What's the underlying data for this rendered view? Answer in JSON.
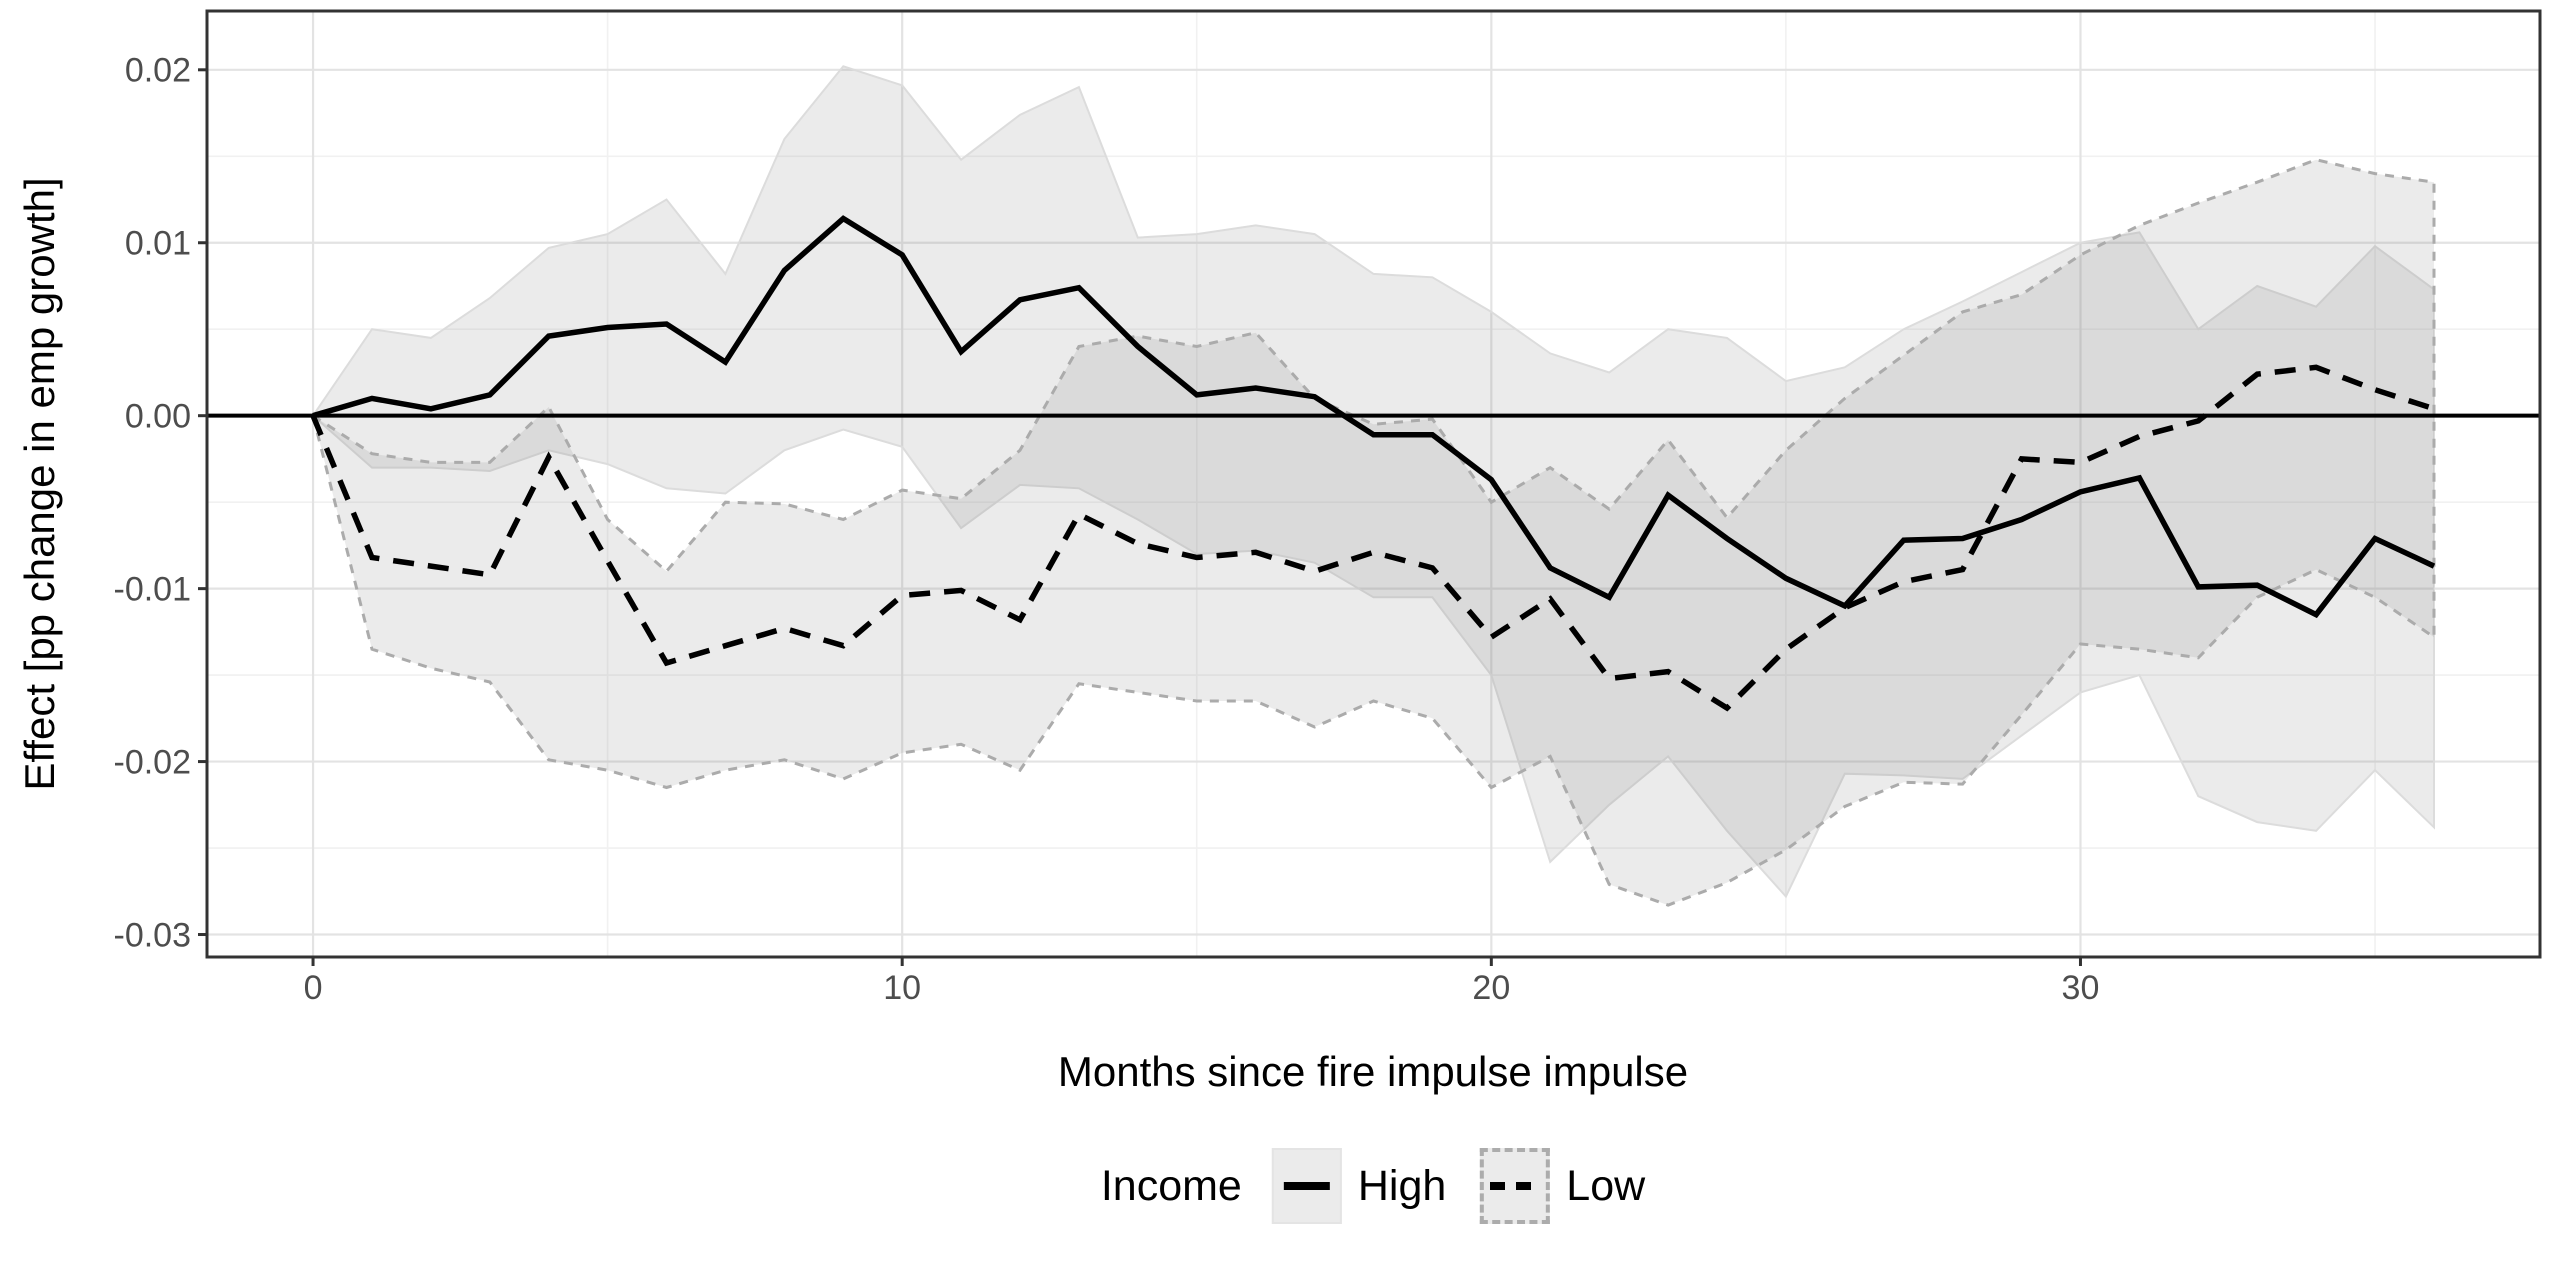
{
  "chart_data": {
    "type": "line",
    "title": "",
    "xlabel": "Months since fire impulse impulse",
    "ylabel": "Effect [pp change in emp growth]",
    "x": [
      0,
      1,
      2,
      3,
      4,
      5,
      6,
      7,
      8,
      9,
      10,
      11,
      12,
      13,
      14,
      15,
      16,
      17,
      18,
      19,
      20,
      21,
      22,
      23,
      24,
      25,
      26,
      27,
      28,
      29,
      30,
      31,
      32,
      33,
      34,
      35,
      36
    ],
    "series": [
      {
        "name": "High",
        "linetype": "solid",
        "values": [
          0.0,
          0.001,
          0.0004,
          0.0012,
          0.0046,
          0.0051,
          0.0053,
          0.0031,
          0.0084,
          0.0114,
          0.0093,
          0.0037,
          0.0067,
          0.0074,
          0.004,
          0.0012,
          0.0016,
          0.0011,
          -0.0011,
          -0.0011,
          -0.0037,
          -0.0088,
          -0.0105,
          -0.0046,
          -0.0071,
          -0.0094,
          -0.011,
          -0.0072,
          -0.0071,
          -0.006,
          -0.0044,
          -0.0036,
          -0.0099,
          -0.0098,
          -0.0115,
          -0.0071,
          -0.0087
        ],
        "upper": [
          0.0,
          0.005,
          0.0045,
          0.0068,
          0.0097,
          0.0105,
          0.0125,
          0.0082,
          0.016,
          0.0202,
          0.0191,
          0.0148,
          0.0174,
          0.019,
          0.0103,
          0.0105,
          0.011,
          0.0105,
          0.0082,
          0.008,
          0.006,
          0.0036,
          0.0025,
          0.005,
          0.0045,
          0.002,
          0.0028,
          0.005,
          0.0066,
          0.0083,
          0.01,
          0.0106,
          0.005,
          0.0075,
          0.0063,
          0.0098,
          0.0073
        ],
        "lower": [
          0.0,
          -0.003,
          -0.003,
          -0.0032,
          -0.002,
          -0.0028,
          -0.0042,
          -0.0045,
          -0.002,
          -0.0008,
          -0.0018,
          -0.0065,
          -0.004,
          -0.0042,
          -0.006,
          -0.008,
          -0.0078,
          -0.0085,
          -0.0105,
          -0.0105,
          -0.015,
          -0.0258,
          -0.0225,
          -0.0197,
          -0.024,
          -0.0278,
          -0.0207,
          -0.0208,
          -0.021,
          -0.0185,
          -0.016,
          -0.015,
          -0.022,
          -0.0235,
          -0.024,
          -0.0205,
          -0.0238
        ]
      },
      {
        "name": "Low",
        "linetype": "dashed",
        "values": [
          0.0,
          -0.0082,
          -0.0087,
          -0.0092,
          -0.0024,
          -0.0084,
          -0.0143,
          -0.0133,
          -0.0123,
          -0.0133,
          -0.0104,
          -0.0101,
          -0.0118,
          -0.0057,
          -0.0074,
          -0.0082,
          -0.0079,
          -0.009,
          -0.0079,
          -0.0088,
          -0.0128,
          -0.0106,
          -0.0152,
          -0.0148,
          -0.0169,
          -0.0135,
          -0.0111,
          -0.0096,
          -0.0089,
          -0.0025,
          -0.0027,
          -0.0012,
          -0.0003,
          0.0024,
          0.0028,
          0.0015,
          0.0004
        ],
        "upper": [
          0.0,
          -0.0022,
          -0.0027,
          -0.0027,
          0.0005,
          -0.006,
          -0.009,
          -0.005,
          -0.0051,
          -0.006,
          -0.0043,
          -0.0048,
          -0.002,
          0.004,
          0.0046,
          0.004,
          0.0048,
          0.001,
          -0.0005,
          -0.0002,
          -0.005,
          -0.003,
          -0.0054,
          -0.0014,
          -0.0059,
          -0.002,
          0.001,
          0.0035,
          0.006,
          0.007,
          0.0093,
          0.011,
          0.0123,
          0.0135,
          0.0148,
          0.014,
          0.0135
        ],
        "lower": [
          0.0,
          -0.0135,
          -0.0146,
          -0.0154,
          -0.0199,
          -0.0205,
          -0.0215,
          -0.0205,
          -0.0199,
          -0.021,
          -0.0195,
          -0.019,
          -0.0205,
          -0.0155,
          -0.016,
          -0.0165,
          -0.0165,
          -0.018,
          -0.0165,
          -0.0175,
          -0.0215,
          -0.0197,
          -0.0271,
          -0.0283,
          -0.027,
          -0.0251,
          -0.0226,
          -0.0212,
          -0.0213,
          -0.0173,
          -0.0132,
          -0.0135,
          -0.014,
          -0.0105,
          -0.0089,
          -0.0105,
          -0.0128
        ]
      }
    ],
    "x_ticks": {
      "major": [
        0,
        10,
        20,
        30
      ],
      "minor": [
        5,
        15,
        25,
        35
      ],
      "labels": [
        "0",
        "10",
        "20",
        "30"
      ]
    },
    "y_ticks": {
      "major": [
        0.02,
        0.01,
        0,
        -0.01,
        -0.02,
        -0.03
      ],
      "minor": [
        0.015,
        0.005,
        -0.005,
        -0.015,
        -0.025
      ],
      "labels": [
        "0.02",
        "0.01",
        "0.00",
        "-0.01",
        "-0.02",
        "-0.03"
      ]
    },
    "xlim": [
      -1.8,
      37.8
    ],
    "ylim": [
      -0.0313,
      0.0234
    ],
    "reference_line_y": 0,
    "grid": true,
    "legend": {
      "title": "Income",
      "position": "bottom",
      "items": [
        "High",
        "Low"
      ]
    },
    "colors": {
      "line": "#000000",
      "ribbon_fill": "#808080",
      "ribbon_high_border": "#DCDCDC",
      "ribbon_low_border": "#ABABAB",
      "axis_text": "#4D4D4D",
      "grid_major": "#E3E3E3",
      "grid_minor": "#F1F1F1",
      "panel_border": "#333333",
      "tick_mark": "#333333"
    }
  }
}
